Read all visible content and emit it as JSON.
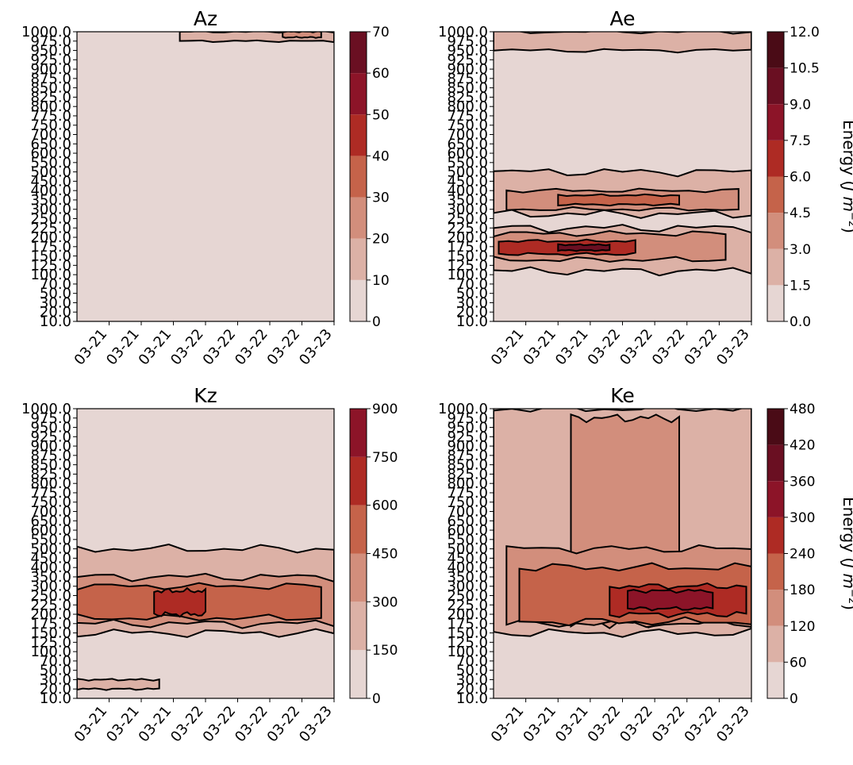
{
  "palette": [
    "#e6d6d3",
    "#dcb1a6",
    "#d28e7c",
    "#c5634a",
    "#ae2b24",
    "#8c1428",
    "#6a0f22",
    "#4a0b16"
  ],
  "y_levels": [
    "1000.0",
    "975.0",
    "950.0",
    "925.0",
    "900.0",
    "875.0",
    "850.0",
    "825.0",
    "800.0",
    "775.0",
    "750.0",
    "700.0",
    "650.0",
    "600.0",
    "550.0",
    "500.0",
    "450.0",
    "400.0",
    "350.0",
    "300.0",
    "250.0",
    "225.0",
    "200.0",
    "175.0",
    "150.0",
    "125.0",
    "100.0",
    "70.0",
    "50.0",
    "30.0",
    "20.0",
    "10.0"
  ],
  "x_ticks": [
    "03-21",
    "03-21",
    "03-21",
    "03-22",
    "03-22",
    "03-22",
    "03-22",
    "03-23"
  ],
  "chart_data": [
    {
      "type": "contour",
      "title": "Az",
      "colorbar_ticks": [
        "0",
        "10",
        "20",
        "30",
        "40",
        "50",
        "60",
        "70"
      ],
      "colorbar_label": "",
      "levels": [
        0,
        10,
        20,
        30,
        40,
        50,
        60,
        70
      ],
      "features": [
        {
          "level_band": 1,
          "pressure_range": [
            975,
            1000
          ],
          "time_range": [
            0.4,
            1.0
          ]
        },
        {
          "level_band": 2,
          "pressure_range": [
            985,
            1000
          ],
          "time_range": [
            0.8,
            0.95
          ]
        }
      ]
    },
    {
      "type": "contour",
      "title": "Ae",
      "colorbar_ticks": [
        "0.0",
        "1.5",
        "3.0",
        "4.5",
        "6.0",
        "7.5",
        "9.0",
        "10.5",
        "12.0"
      ],
      "colorbar_label": "Energy  (J m^-2)",
      "levels": [
        0,
        1.5,
        3,
        4.5,
        6,
        7.5,
        9,
        10.5,
        12
      ],
      "features": [
        {
          "level_band": 1,
          "pressure_range": [
            950,
            1000
          ],
          "time_range": [
            0,
            1
          ]
        },
        {
          "level_band": 1,
          "pressure_range": [
            275,
            500
          ],
          "time_range": [
            0,
            1
          ]
        },
        {
          "level_band": 2,
          "pressure_range": [
            300,
            400
          ],
          "time_range": [
            0.05,
            0.95
          ]
        },
        {
          "level_band": 3,
          "pressure_range": [
            325,
            375
          ],
          "time_range": [
            0.25,
            0.72
          ]
        },
        {
          "level_band": 1,
          "pressure_range": [
            110,
            225
          ],
          "time_range": [
            0,
            1
          ]
        },
        {
          "level_band": 2,
          "pressure_range": [
            140,
            210
          ],
          "time_range": [
            0,
            0.9
          ]
        },
        {
          "level_band": 4,
          "pressure_range": [
            155,
            190
          ],
          "time_range": [
            0.02,
            0.55
          ]
        },
        {
          "level_band": 6,
          "pressure_range": [
            165,
            180
          ],
          "time_range": [
            0.25,
            0.45
          ]
        }
      ]
    },
    {
      "type": "contour",
      "title": "Kz",
      "colorbar_ticks": [
        "0",
        "150",
        "300",
        "450",
        "600",
        "750",
        "900"
      ],
      "colorbar_label": "",
      "levels": [
        0,
        150,
        300,
        450,
        600,
        750,
        900
      ],
      "features": [
        {
          "level_band": 1,
          "pressure_range": [
            150,
            500
          ],
          "time_range": [
            0,
            1
          ]
        },
        {
          "level_band": 2,
          "pressure_range": [
            175,
            350
          ],
          "time_range": [
            0,
            1
          ]
        },
        {
          "level_band": 3,
          "pressure_range": [
            190,
            300
          ],
          "time_range": [
            0,
            0.95
          ]
        },
        {
          "level_band": 4,
          "pressure_range": [
            200,
            275
          ],
          "time_range": [
            0.3,
            0.5
          ]
        },
        {
          "level_band": 1,
          "pressure_range": [
            20,
            30
          ],
          "time_range": [
            0,
            0.32
          ]
        }
      ]
    },
    {
      "type": "contour",
      "title": "Ke",
      "colorbar_ticks": [
        "0",
        "60",
        "120",
        "180",
        "240",
        "300",
        "360",
        "420",
        "480"
      ],
      "colorbar_label": "Energy  (J m^-2)",
      "levels": [
        0,
        60,
        120,
        180,
        240,
        300,
        360,
        420,
        480
      ],
      "features": [
        {
          "level_band": 1,
          "pressure_range": [
            150,
            1000
          ],
          "time_range": [
            0,
            1
          ]
        },
        {
          "level_band": 2,
          "pressure_range": [
            175,
            975
          ],
          "time_range": [
            0.3,
            0.72
          ]
        },
        {
          "level_band": 2,
          "pressure_range": [
            175,
            500
          ],
          "time_range": [
            0.05,
            1
          ]
        },
        {
          "level_band": 3,
          "pressure_range": [
            180,
            400
          ],
          "time_range": [
            0.1,
            1
          ]
        },
        {
          "level_band": 4,
          "pressure_range": [
            200,
            300
          ],
          "time_range": [
            0.45,
            0.98
          ]
        },
        {
          "level_band": 5,
          "pressure_range": [
            215,
            275
          ],
          "time_range": [
            0.52,
            0.85
          ]
        }
      ]
    }
  ]
}
